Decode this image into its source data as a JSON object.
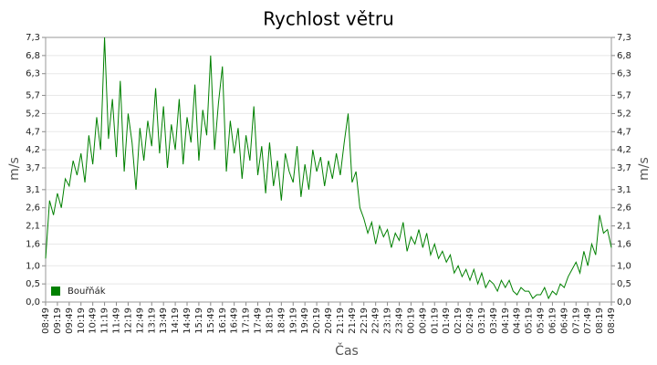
{
  "chart_data": {
    "type": "line",
    "title": "Rychlost větru",
    "x_label": "Čas",
    "y_label": "m/s",
    "categories": [
      "08:49",
      null,
      null,
      "09:19",
      null,
      null,
      "09:49",
      null,
      null,
      "10:19",
      null,
      null,
      "10:49",
      null,
      null,
      "11:19",
      null,
      null,
      "11:49",
      null,
      null,
      "12:19",
      null,
      null,
      "12:49",
      null,
      null,
      "13:19",
      null,
      null,
      "13:49",
      null,
      null,
      "14:19",
      null,
      null,
      "14:49",
      null,
      null,
      "15:19",
      null,
      null,
      "15:49",
      null,
      null,
      "16:19",
      null,
      null,
      "16:49",
      null,
      null,
      "17:19",
      null,
      null,
      "17:49",
      null,
      null,
      "18:19",
      null,
      null,
      "18:49",
      null,
      null,
      "19:19",
      null,
      null,
      "19:49",
      null,
      null,
      "20:19",
      null,
      null,
      "20:49",
      null,
      null,
      "21:19",
      null,
      null,
      "21:49",
      null,
      null,
      "22:19",
      null,
      null,
      "22:49",
      null,
      null,
      "23:19",
      null,
      null,
      "23:49",
      null,
      null,
      "00:19",
      null,
      null,
      "00:49",
      null,
      null,
      "01:19",
      null,
      null,
      "01:49",
      null,
      null,
      "02:19",
      null,
      null,
      "02:49",
      null,
      null,
      "03:19",
      null,
      null,
      "03:49",
      null,
      null,
      "04:19",
      null,
      null,
      "04:49",
      null,
      null,
      "05:19",
      null,
      null,
      "05:49",
      null,
      null,
      "06:19",
      null,
      null,
      "06:49",
      null,
      null,
      "07:19",
      null,
      null,
      "07:49",
      null,
      null,
      "08:19",
      null,
      null,
      "08:49"
    ],
    "series": [
      {
        "name": "Bouřňák",
        "color": "#008000",
        "values": [
          1.2,
          2.8,
          2.4,
          3.0,
          2.6,
          3.4,
          3.2,
          3.9,
          3.5,
          4.1,
          3.3,
          4.6,
          3.8,
          5.1,
          4.2,
          7.3,
          4.5,
          5.6,
          4.0,
          6.1,
          3.6,
          5.2,
          4.4,
          3.1,
          4.8,
          3.9,
          5.0,
          4.3,
          5.9,
          4.1,
          5.4,
          3.7,
          4.9,
          4.2,
          5.6,
          3.8,
          5.1,
          4.4,
          6.0,
          3.9,
          5.3,
          4.6,
          6.8,
          4.2,
          5.5,
          6.5,
          3.6,
          5.0,
          4.1,
          4.8,
          3.4,
          4.6,
          3.9,
          5.4,
          3.5,
          4.3,
          3.0,
          4.4,
          3.2,
          3.9,
          2.8,
          4.1,
          3.6,
          3.3,
          4.3,
          2.9,
          3.8,
          3.1,
          4.2,
          3.6,
          4.0,
          3.2,
          3.9,
          3.4,
          4.1,
          3.5,
          4.4,
          5.2,
          3.3,
          3.6,
          2.6,
          2.3,
          1.9,
          2.2,
          1.6,
          2.1,
          1.8,
          2.0,
          1.5,
          1.9,
          1.7,
          2.2,
          1.4,
          1.8,
          1.6,
          2.0,
          1.5,
          1.9,
          1.3,
          1.6,
          1.2,
          1.4,
          1.1,
          1.3,
          0.8,
          1.0,
          0.7,
          0.9,
          0.6,
          0.9,
          0.5,
          0.8,
          0.4,
          0.6,
          0.5,
          0.3,
          0.6,
          0.4,
          0.6,
          0.3,
          0.2,
          0.4,
          0.3,
          0.3,
          0.1,
          0.2,
          0.2,
          0.4,
          0.1,
          0.3,
          0.2,
          0.5,
          0.4,
          0.7,
          0.9,
          1.1,
          0.8,
          1.4,
          1.0,
          1.6,
          1.3,
          2.4,
          1.9,
          2.0,
          1.5
        ]
      }
    ],
    "ylim": [
      0,
      7.3
    ],
    "yticks": [
      {
        "value": 0,
        "label": "0,0"
      },
      {
        "value": 0.5,
        "label": "0,5"
      },
      {
        "value": 1.0,
        "label": "1,0"
      },
      {
        "value": 1.6,
        "label": "1,6"
      },
      {
        "value": 2.1,
        "label": "2,1"
      },
      {
        "value": 2.6,
        "label": "2,6"
      },
      {
        "value": 3.1,
        "label": "3,1"
      },
      {
        "value": 3.7,
        "label": "3,7"
      },
      {
        "value": 4.2,
        "label": "4,2"
      },
      {
        "value": 4.7,
        "label": "4,7"
      },
      {
        "value": 5.2,
        "label": "5,2"
      },
      {
        "value": 5.7,
        "label": "5,7"
      },
      {
        "value": 6.3,
        "label": "6,3"
      },
      {
        "value": 6.8,
        "label": "6,8"
      },
      {
        "value": 7.3,
        "label": "7,3"
      }
    ],
    "grid": true,
    "legend": "lower left"
  }
}
